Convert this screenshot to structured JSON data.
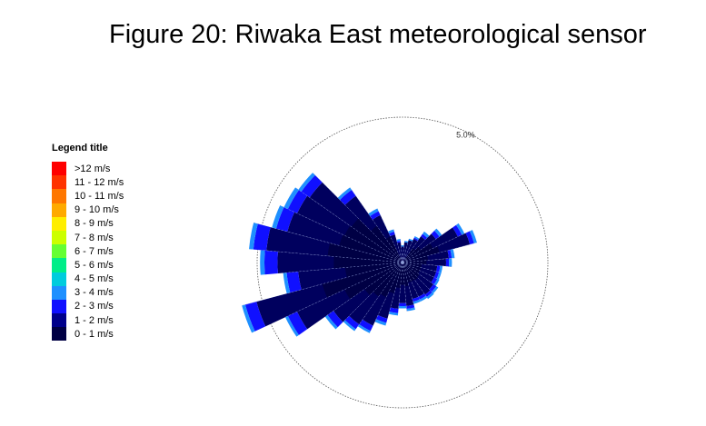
{
  "title": "Figure 20: Riwaka East meteorological sensor",
  "chart_data": {
    "type": "windrose",
    "ring_label": "5.0%",
    "ring_percent": 5.0,
    "legend_title": "Legend title",
    "bins": [
      {
        "label": ">12 m/s",
        "color": "#ff0000"
      },
      {
        "label": "11 - 12 m/s",
        "color": "#ff3300"
      },
      {
        "label": "10 - 11 m/s",
        "color": "#ff7700"
      },
      {
        "label": "9 - 10 m/s",
        "color": "#ffaa00"
      },
      {
        "label": "8 - 9 m/s",
        "color": "#ffee00"
      },
      {
        "label": "7 - 8 m/s",
        "color": "#ccff00"
      },
      {
        "label": "6 - 7 m/s",
        "color": "#66ff33"
      },
      {
        "label": "5 - 6 m/s",
        "color": "#00ee88"
      },
      {
        "label": "4 - 5 m/s",
        "color": "#00ccdd"
      },
      {
        "label": "3 - 4 m/s",
        "color": "#1e90ff"
      },
      {
        "label": "2 - 3 m/s",
        "color": "#1010ff"
      },
      {
        "label": "1 - 2 m/s",
        "color": "#00008b"
      },
      {
        "label": "0 - 1 m/s",
        "color": "#000044"
      }
    ],
    "directions_deg": [
      0,
      10,
      20,
      30,
      40,
      50,
      60,
      70,
      80,
      90,
      100,
      110,
      120,
      130,
      140,
      150,
      160,
      170,
      180,
      190,
      200,
      210,
      220,
      230,
      240,
      250,
      260,
      270,
      280,
      290,
      300,
      310,
      320,
      330,
      340,
      350
    ],
    "frequency_percent": [
      [
        0.55,
        0.0,
        0.04
      ],
      [
        0.7,
        0.0,
        0.05
      ],
      [
        0.8,
        0.0,
        0.05
      ],
      [
        0.9,
        0.05,
        0.05
      ],
      [
        1.1,
        0.1,
        0.1
      ],
      [
        1.4,
        0.15,
        0.1
      ],
      [
        2.1,
        0.15,
        0.1
      ],
      [
        2.4,
        0.15,
        0.1
      ],
      [
        1.6,
        0.1,
        0.1
      ],
      [
        1.5,
        0.1,
        0.1
      ],
      [
        1.2,
        0.1,
        0.08
      ],
      [
        1.2,
        0.1,
        0.08
      ],
      [
        1.2,
        0.12,
        0.08
      ],
      [
        1.3,
        0.12,
        0.08
      ],
      [
        1.35,
        0.1,
        0.08
      ],
      [
        1.3,
        0.1,
        0.08
      ],
      [
        1.3,
        0.1,
        0.08
      ],
      [
        1.5,
        0.1,
        0.08
      ],
      [
        1.4,
        0.1,
        0.08
      ],
      [
        1.6,
        0.15,
        0.08
      ],
      [
        2.0,
        0.15,
        0.1
      ],
      [
        2.4,
        0.2,
        0.08
      ],
      [
        2.6,
        0.2,
        0.08
      ],
      [
        2.9,
        0.25,
        0.1
      ],
      [
        4.0,
        0.35,
        0.1
      ],
      [
        5.2,
        0.4,
        0.12
      ],
      [
        3.6,
        0.4,
        0.12
      ],
      [
        4.3,
        0.45,
        0.15
      ],
      [
        4.7,
        0.45,
        0.15
      ],
      [
        4.1,
        0.4,
        0.15
      ],
      [
        4.0,
        0.35,
        0.15
      ],
      [
        3.9,
        0.35,
        0.12
      ],
      [
        2.8,
        0.25,
        0.1
      ],
      [
        1.8,
        0.15,
        0.1
      ],
      [
        1.0,
        0.1,
        0.08
      ],
      [
        0.7,
        0.05,
        0.06
      ]
    ],
    "frequency_series": [
      "0 - 1 m/s and 1 - 2 m/s",
      "2 - 3 m/s",
      "3 - 4 m/s"
    ]
  }
}
